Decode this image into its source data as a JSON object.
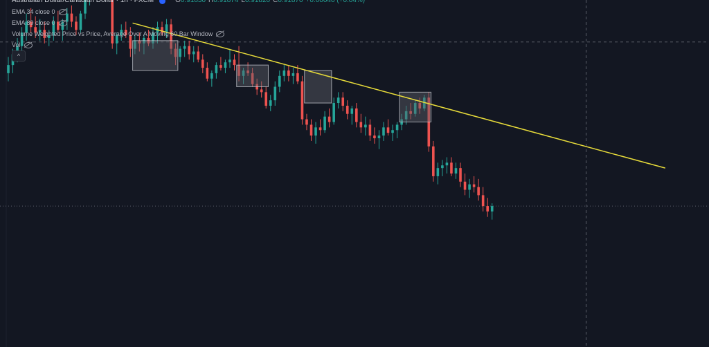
{
  "legend": {
    "symbol": "Australian Dollar/Canadian Dollar · 1h · FXCM",
    "ohlc": {
      "o_label": "O",
      "o": "0.91830",
      "h_label": "H",
      "h": "0.91874",
      "l_label": "L",
      "l": "0.91820",
      "c_label": "C",
      "c": "0.91870",
      "change": "+0.00040 (+0.04%)"
    },
    "indicators": [
      "EMA 34 close 0",
      "EMA 89 close 0",
      "Volume Weighted Price vs Price, Average Over A Moving 60 Bar Window",
      "Vol"
    ],
    "collapse_glyph": "^"
  },
  "colors": {
    "background": "#131722",
    "bull": "#26a69a",
    "bear": "#ef5350",
    "trendline": "#e8dc3a",
    "box_fill": "#5d6068",
    "box_stroke": "#d1d4dc",
    "crosshair": "#5d606b",
    "grid": "#1e222d"
  },
  "chart_data": {
    "type": "candlestick",
    "symbol": "AUDCAD",
    "interval": "1h",
    "value_range": [
      0.9174,
      0.9302
    ],
    "bar_count": 108,
    "candles": [
      [
        0.9275,
        0.9281,
        0.9272,
        0.9278
      ],
      [
        0.9278,
        0.9284,
        0.9275,
        0.9282
      ],
      [
        0.9282,
        0.9288,
        0.9279,
        0.9285
      ],
      [
        0.9285,
        0.9292,
        0.9283,
        0.929
      ],
      [
        0.929,
        0.9297,
        0.9287,
        0.9294
      ],
      [
        0.9294,
        0.9299,
        0.929,
        0.9292
      ],
      [
        0.9292,
        0.9296,
        0.9288,
        0.929
      ],
      [
        0.929,
        0.9295,
        0.9287,
        0.9291
      ],
      [
        0.9291,
        0.9294,
        0.9286,
        0.9288
      ],
      [
        0.9288,
        0.9291,
        0.9285,
        0.9289
      ],
      [
        0.9289,
        0.9296,
        0.9287,
        0.9294
      ],
      [
        0.9294,
        0.9298,
        0.929,
        0.9291
      ],
      [
        0.9291,
        0.9295,
        0.9287,
        0.9294
      ],
      [
        0.9294,
        0.9299,
        0.9291,
        0.9297
      ],
      [
        0.9297,
        0.93,
        0.9292,
        0.9294
      ],
      [
        0.9294,
        0.9296,
        0.9289,
        0.9291
      ],
      [
        0.9291,
        0.9298,
        0.929,
        0.9297
      ],
      [
        0.9297,
        0.9304,
        0.9295,
        0.9302
      ],
      [
        0.9302,
        0.9309,
        0.93,
        0.9307
      ],
      [
        0.9307,
        0.9311,
        0.9303,
        0.9309
      ],
      [
        0.9309,
        0.9313,
        0.9305,
        0.931
      ],
      [
        0.931,
        0.9313,
        0.9306,
        0.9308
      ],
      [
        0.9308,
        0.9311,
        0.9304,
        0.931
      ],
      [
        0.931,
        0.9312,
        0.9284,
        0.9286
      ],
      [
        0.9286,
        0.929,
        0.9282,
        0.9289
      ],
      [
        0.9289,
        0.9293,
        0.9287,
        0.9291
      ],
      [
        0.9291,
        0.9294,
        0.9288,
        0.9289
      ],
      [
        0.9289,
        0.9292,
        0.9281,
        0.9284
      ],
      [
        0.9284,
        0.9289,
        0.9282,
        0.9287
      ],
      [
        0.9287,
        0.929,
        0.9283,
        0.9286
      ],
      [
        0.9286,
        0.9289,
        0.9282,
        0.9288
      ],
      [
        0.9288,
        0.9291,
        0.9285,
        0.9286
      ],
      [
        0.9286,
        0.9292,
        0.9284,
        0.929
      ],
      [
        0.929,
        0.9294,
        0.9286,
        0.9292
      ],
      [
        0.9292,
        0.9294,
        0.9289,
        0.929
      ],
      [
        0.929,
        0.9295,
        0.9288,
        0.9293
      ],
      [
        0.9293,
        0.9295,
        0.9282,
        0.9284
      ],
      [
        0.9284,
        0.9286,
        0.9278,
        0.9281
      ],
      [
        0.9281,
        0.9285,
        0.9279,
        0.9284
      ],
      [
        0.9284,
        0.9287,
        0.9281,
        0.9285
      ],
      [
        0.9285,
        0.9287,
        0.928,
        0.9282
      ],
      [
        0.9282,
        0.9285,
        0.9279,
        0.9283
      ],
      [
        0.9283,
        0.9285,
        0.9279,
        0.928
      ],
      [
        0.928,
        0.9282,
        0.9275,
        0.9277
      ],
      [
        0.9277,
        0.9279,
        0.9272,
        0.9273
      ],
      [
        0.9273,
        0.9276,
        0.927,
        0.9275
      ],
      [
        0.9275,
        0.9279,
        0.9273,
        0.9278
      ],
      [
        0.9278,
        0.9281,
        0.9276,
        0.9277
      ],
      [
        0.9277,
        0.928,
        0.9275,
        0.9279
      ],
      [
        0.9279,
        0.9284,
        0.9277,
        0.928
      ],
      [
        0.928,
        0.9282,
        0.9276,
        0.9278
      ],
      [
        0.9278,
        0.9285,
        0.9272,
        0.9274
      ],
      [
        0.9274,
        0.9277,
        0.9271,
        0.9276
      ],
      [
        0.9276,
        0.9279,
        0.9274,
        0.9275
      ],
      [
        0.9275,
        0.9277,
        0.927,
        0.9271
      ],
      [
        0.9271,
        0.9273,
        0.9267,
        0.9269
      ],
      [
        0.9269,
        0.9272,
        0.9266,
        0.9268
      ],
      [
        0.9268,
        0.927,
        0.9262,
        0.9263
      ],
      [
        0.9263,
        0.9267,
        0.9261,
        0.9265
      ],
      [
        0.9265,
        0.9272,
        0.9263,
        0.927
      ],
      [
        0.927,
        0.9276,
        0.9268,
        0.9274
      ],
      [
        0.9274,
        0.9278,
        0.9272,
        0.9276
      ],
      [
        0.9276,
        0.9278,
        0.9272,
        0.9274
      ],
      [
        0.9274,
        0.9277,
        0.9271,
        0.9275
      ],
      [
        0.9275,
        0.9278,
        0.9271,
        0.9272
      ],
      [
        0.9272,
        0.9274,
        0.9256,
        0.9258
      ],
      [
        0.9258,
        0.926,
        0.9254,
        0.9256
      ],
      [
        0.9256,
        0.9258,
        0.925,
        0.9252
      ],
      [
        0.9252,
        0.9257,
        0.9249,
        0.9255
      ],
      [
        0.9255,
        0.9258,
        0.9252,
        0.9254
      ],
      [
        0.9254,
        0.9261,
        0.9253,
        0.9259
      ],
      [
        0.9259,
        0.9262,
        0.9255,
        0.9257
      ],
      [
        0.9257,
        0.9266,
        0.9256,
        0.9264
      ],
      [
        0.9264,
        0.9268,
        0.9262,
        0.9266
      ],
      [
        0.9266,
        0.9268,
        0.9261,
        0.9263
      ],
      [
        0.9263,
        0.9265,
        0.9258,
        0.926
      ],
      [
        0.926,
        0.9263,
        0.9256,
        0.9262
      ],
      [
        0.9262,
        0.9264,
        0.9255,
        0.9257
      ],
      [
        0.9257,
        0.926,
        0.9253,
        0.9255
      ],
      [
        0.9255,
        0.9259,
        0.9252,
        0.9256
      ],
      [
        0.9256,
        0.9258,
        0.925,
        0.9252
      ],
      [
        0.9252,
        0.9255,
        0.9249,
        0.9251
      ],
      [
        0.9251,
        0.9254,
        0.9247,
        0.9252
      ],
      [
        0.9252,
        0.9257,
        0.925,
        0.9255
      ],
      [
        0.9255,
        0.9258,
        0.9252,
        0.9253
      ],
      [
        0.9253,
        0.9256,
        0.925,
        0.9254
      ],
      [
        0.9254,
        0.9257,
        0.9251,
        0.9256
      ],
      [
        0.9256,
        0.926,
        0.9254,
        0.9258
      ],
      [
        0.9258,
        0.9263,
        0.9256,
        0.9261
      ],
      [
        0.9261,
        0.9264,
        0.9258,
        0.926
      ],
      [
        0.926,
        0.9265,
        0.9259,
        0.9264
      ],
      [
        0.9264,
        0.9266,
        0.926,
        0.9262
      ],
      [
        0.9262,
        0.9267,
        0.9261,
        0.9266
      ],
      [
        0.9266,
        0.9268,
        0.9246,
        0.9248
      ],
      [
        0.9248,
        0.925,
        0.9235,
        0.9237
      ],
      [
        0.9237,
        0.9242,
        0.9234,
        0.924
      ],
      [
        0.924,
        0.9243,
        0.9237,
        0.9241
      ],
      [
        0.9241,
        0.9244,
        0.9238,
        0.9242
      ],
      [
        0.9242,
        0.9244,
        0.9237,
        0.9238
      ],
      [
        0.9238,
        0.9242,
        0.9236,
        0.924
      ],
      [
        0.924,
        0.9242,
        0.9233,
        0.9235
      ],
      [
        0.9235,
        0.9238,
        0.923,
        0.9232
      ],
      [
        0.9232,
        0.9236,
        0.9229,
        0.9234
      ],
      [
        0.9234,
        0.9237,
        0.9231,
        0.9233
      ],
      [
        0.9233,
        0.9236,
        0.9228,
        0.923
      ],
      [
        0.923,
        0.9233,
        0.9224,
        0.9226
      ],
      [
        0.9226,
        0.9229,
        0.9222,
        0.9224
      ],
      [
        0.9224,
        0.9227,
        0.9221,
        0.9226
      ]
    ],
    "trendline": {
      "from": {
        "bar": 27.5,
        "price": 0.92935
      },
      "to": {
        "bar": 145.3,
        "price": 0.924
      }
    },
    "boxes": [
      {
        "from_bar": 28,
        "to_bar": 37,
        "top": 0.9287,
        "bottom": 0.9276
      },
      {
        "from_bar": 51,
        "to_bar": 57,
        "top": 0.9278,
        "bottom": 0.927
      },
      {
        "from_bar": 66,
        "to_bar": 71,
        "top": 0.9276,
        "bottom": 0.9264
      },
      {
        "from_bar": 87,
        "to_bar": 93,
        "top": 0.9268,
        "bottom": 0.9257
      }
    ],
    "crosshair": {
      "bar": 127.8,
      "price": 0.92865
    },
    "reference_line": {
      "price": 0.9226
    },
    "grid": false
  }
}
